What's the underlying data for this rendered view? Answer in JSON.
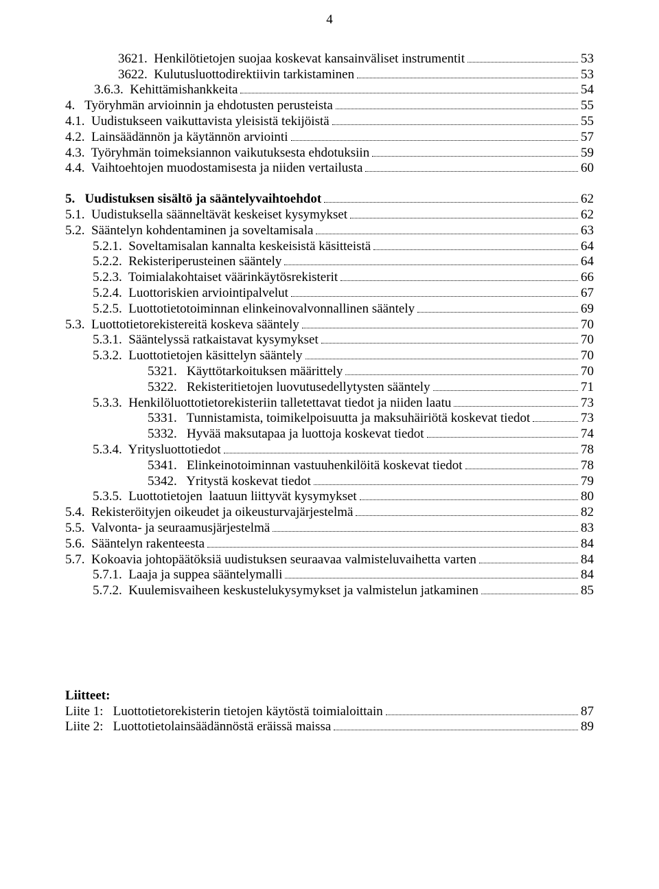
{
  "page_number": "4",
  "toc": [
    {
      "indent": "i1",
      "text": "3621.  Henkilötietojen suojaa koskevat kansainväliset instrumentit",
      "page": "53"
    },
    {
      "indent": "i1",
      "text": "3622.  Kulutusluottodirektiivin tarkistaminen",
      "page": "53"
    },
    {
      "indent": "i0",
      "text": "3.6.3.  Kehittämishankkeita",
      "page": "54"
    },
    {
      "indent": "i2",
      "text": "4.   Työryhmän arvioinnin ja ehdotusten perusteista",
      "page": "55"
    },
    {
      "indent": "i2",
      "text": "4.1.  Uudistukseen vaikuttavista yleisistä tekijöistä",
      "page": "55"
    },
    {
      "indent": "i2",
      "text": "4.2.  Lainsäädännön ja käytännön arviointi",
      "page": "57"
    },
    {
      "indent": "i2",
      "text": "4.3.  Työryhmän toimeksiannon vaikutuksesta ehdotuksiin",
      "page": "59"
    },
    {
      "indent": "i2",
      "text": "4.4.  Vaihtoehtojen muodostamisesta ja niiden vertailusta",
      "page": "60"
    },
    {
      "indent": "i2",
      "text": "5.   Uudistuksen sisältö ja sääntelyvaihtoehdot",
      "page": "62",
      "bold": true,
      "gap_above": true
    },
    {
      "indent": "i2",
      "text": "5.1.  Uudistuksella säänneltävät keskeiset kysymykset",
      "page": "62"
    },
    {
      "indent": "i2",
      "text": "5.2.  Sääntelyn kohdentaminen ja soveltamisala",
      "page": "63"
    },
    {
      "indent": "i3",
      "text": "5.2.1.  Soveltamisalan kannalta keskeisistä käsitteistä",
      "page": "64"
    },
    {
      "indent": "i3",
      "text": "5.2.2.  Rekisteriperusteinen sääntely",
      "page": "64"
    },
    {
      "indent": "i3",
      "text": "5.2.3.  Toimialakohtaiset väärinkäytösrekisterit",
      "page": "66"
    },
    {
      "indent": "i3",
      "text": "5.2.4.  Luottoriskien arviointipalvelut",
      "page": "67"
    },
    {
      "indent": "i3",
      "text": "5.2.5.  Luottotietotoiminnan elinkeinovalvonnallinen sääntely",
      "page": "69"
    },
    {
      "indent": "i2",
      "text": "5.3.  Luottotietorekistereitä koskeva sääntely",
      "page": "70"
    },
    {
      "indent": "i3",
      "text": "5.3.1.  Sääntelyssä ratkaistavat kysymykset",
      "page": "70"
    },
    {
      "indent": "i3",
      "text": "5.3.2.  Luottotietojen käsittelyn sääntely",
      "page": "70"
    },
    {
      "indent": "i4",
      "text": "5321.   Käyttötarkoituksen määrittely",
      "page": "70"
    },
    {
      "indent": "i4",
      "text": "5322.   Rekisteritietojen luovutusedellytysten sääntely",
      "page": "71"
    },
    {
      "indent": "i3",
      "text": "5.3.3.  Henkilöluottotietorekisteriin talletettavat tiedot ja niiden laatu",
      "page": "73"
    },
    {
      "indent": "i4",
      "text": "5331.   Tunnistamista, toimikelpoisuutta ja maksuhäiriötä koskevat tiedot",
      "page": "73"
    },
    {
      "indent": "i4",
      "text": "5332.   Hyvää maksutapaa ja luottoja koskevat tiedot",
      "page": "74"
    },
    {
      "indent": "i3",
      "text": "5.3.4.  Yritysluottotiedot",
      "page": "78"
    },
    {
      "indent": "i4",
      "text": "5341.   Elinkeinotoiminnan vastuuhenkilöitä koskevat tiedot",
      "page": "78"
    },
    {
      "indent": "i4",
      "text": "5342.   Yritystä koskevat tiedot",
      "page": "79"
    },
    {
      "indent": "i3",
      "text": "5.3.5.  Luottotietojen  laatuun liittyvät kysymykset",
      "page": "80"
    },
    {
      "indent": "i2",
      "text": "5.4.  Rekisteröityjen oikeudet ja oikeusturvajärjestelmä",
      "page": "82"
    },
    {
      "indent": "i2",
      "text": "5.5.  Valvonta- ja seuraamusjärjestelmä",
      "page": "83"
    },
    {
      "indent": "i2",
      "text": "5.6.  Sääntelyn rakenteesta",
      "page": "84"
    },
    {
      "indent": "i2",
      "text": "5.7.  Kokoavia johtopäätöksiä uudistuksen seuraavaa valmisteluvaihetta varten",
      "page": "84"
    },
    {
      "indent": "i3",
      "text": "5.7.1.  Laaja ja suppea sääntelymalli",
      "page": "84"
    },
    {
      "indent": "i3",
      "text": "5.7.2.  Kuulemisvaiheen keskustelukysymykset ja valmistelun jatkaminen",
      "page": "85"
    }
  ],
  "attachments": {
    "heading": "Liitteet:",
    "items": [
      {
        "label": "Liite 1:   Luottotietorekisterin tietojen käytöstä toimialoittain",
        "page": "87"
      },
      {
        "label": "Liite 2:   Luottotietolainsäädännöstä eräissä maissa",
        "page": "89"
      }
    ]
  }
}
